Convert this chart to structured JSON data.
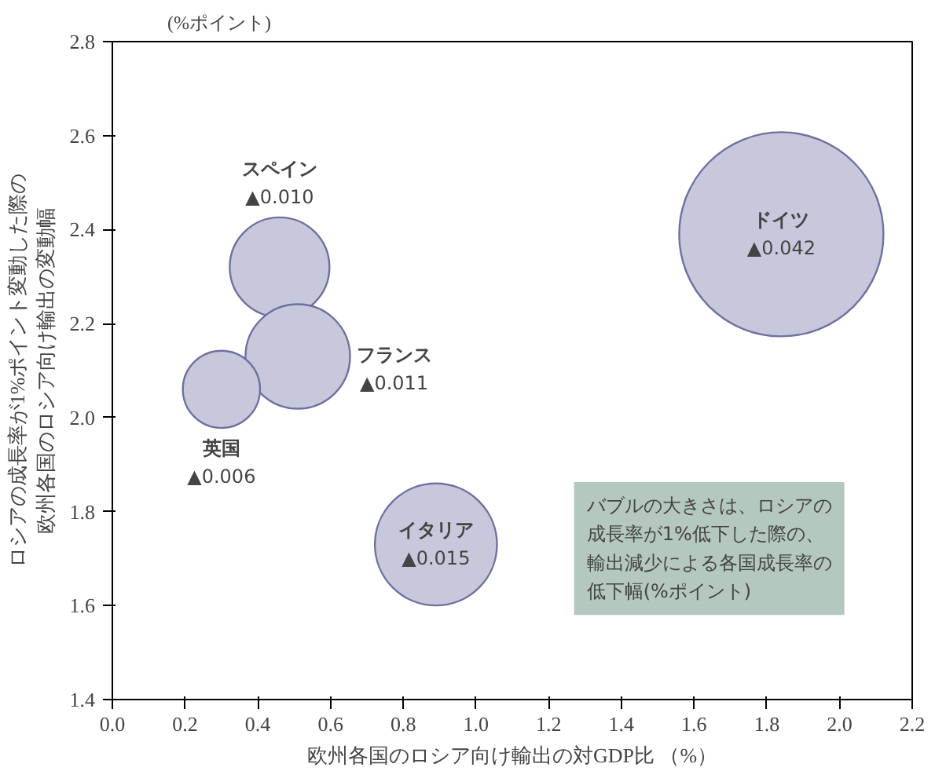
{
  "chart_data": {
    "type": "bubble",
    "xlabel": "欧州各国のロシア向け輸出の対GDP比 （%）",
    "ylabel": "ロシアの成長率が1%ポイント変動した際の欧州各国のロシア向け輸出の変動幅",
    "annotations": [
      "(%ポイント)",
      "バブルの大きさは、ロシアの成長率が1%低下した際の、輸出減少による各国成長率の低下幅(%ポイント)"
    ],
    "xlim": [
      0.0,
      2.2
    ],
    "xticks": [
      {
        "value": 0,
        "label": "0.0"
      },
      0.2,
      0.4,
      0.6,
      0.8,
      {
        "value": 1,
        "label": "1.0"
      },
      1.2,
      1.4,
      1.6,
      1.8,
      {
        "value": 2,
        "label": "2.0"
      },
      2.2
    ],
    "ylim": [
      1.4,
      2.8
    ],
    "yticks": [
      1.4,
      1.6,
      1.8,
      {
        "value": 2,
        "label": "2.0"
      },
      2.2,
      2.4,
      2.6,
      2.8
    ],
    "grid": false,
    "series": [
      {
        "name": "スペイン",
        "color": "#c8c8dc",
        "x": [
          0.46
        ],
        "values": [
          2.32
        ],
        "sizes": [
          0.01
        ],
        "value_labels": [
          "▲0.010"
        ]
      },
      {
        "name": "フランス",
        "color": "#c8c8dc",
        "x": [
          0.51
        ],
        "values": [
          2.13
        ],
        "sizes": [
          0.011
        ],
        "value_labels": [
          "▲0.011"
        ]
      },
      {
        "name": "英国",
        "color": "#c8c8dc",
        "x": [
          0.3
        ],
        "values": [
          2.06
        ],
        "sizes": [
          0.006
        ],
        "value_labels": [
          "▲0.006"
        ]
      },
      {
        "name": "イタリア",
        "color": "#c8c8dc",
        "x": [
          0.89
        ],
        "values": [
          1.73
        ],
        "sizes": [
          0.015
        ],
        "value_labels": [
          "▲0.015"
        ]
      },
      {
        "name": "ドイツ",
        "color": "#c8c8dc",
        "x": [
          1.84
        ],
        "values": [
          2.39
        ],
        "sizes": [
          0.042
        ],
        "value_labels": [
          "▲0.042"
        ]
      }
    ]
  }
}
